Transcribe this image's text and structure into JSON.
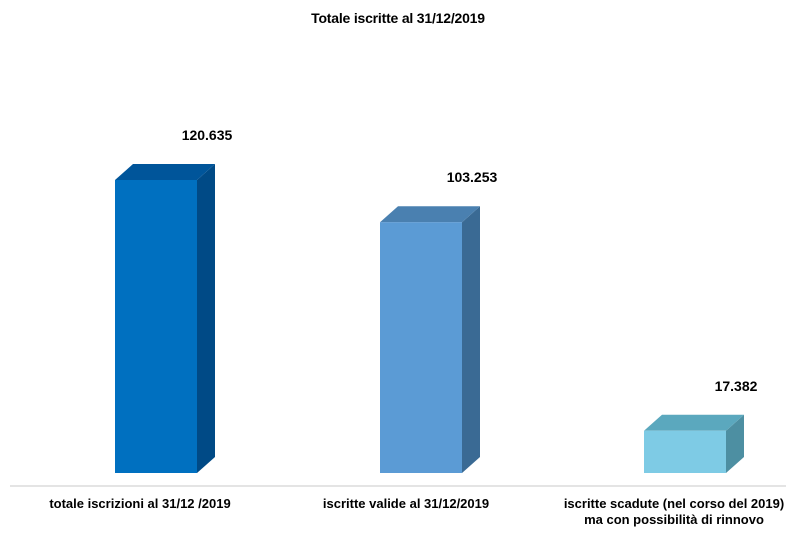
{
  "chart_data": {
    "type": "bar",
    "title": "Totale iscritte al 31/12/2019",
    "categories": [
      "totale iscrizioni al 31/12 /2019",
      "iscritte valide al 31/12/2019",
      "iscritte scadute (nel corso del 2019) ma con possibilità di rinnovo"
    ],
    "values": [
      120635,
      103253,
      17382
    ],
    "value_labels": [
      "120.635",
      "103.253",
      "17.382"
    ],
    "colors": [
      {
        "front": "#0070C0",
        "top": "#00559A",
        "side": "#004A86"
      },
      {
        "front": "#5B9BD5",
        "top": "#4A80B0",
        "side": "#3A6A94"
      },
      {
        "front": "#7ECBE5",
        "top": "#5BA8BE",
        "side": "#4D8FA2"
      }
    ],
    "ylim": [
      0,
      130000
    ],
    "grid": false,
    "legend": "none"
  }
}
